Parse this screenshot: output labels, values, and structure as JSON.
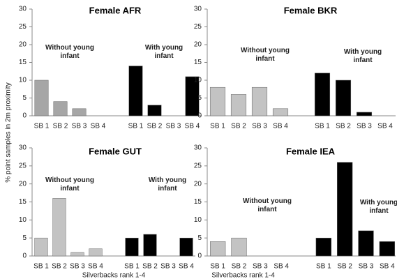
{
  "ylabel": "% point samples in 2m proximity",
  "chart_data": [
    {
      "type": "grouped-bar",
      "title": "Female AFR",
      "ylim": [
        0,
        30
      ],
      "yticks": [
        0,
        5,
        10,
        15,
        20,
        25,
        30
      ],
      "groups": [
        {
          "name": "Without young infant",
          "color": "#a6a6a6",
          "categories": [
            "SB 1",
            "SB 2",
            "SB 3",
            "SB 4"
          ],
          "values": [
            10,
            4,
            2,
            0
          ]
        },
        {
          "name": "With young infant",
          "color": "#000000",
          "categories": [
            "SB 1",
            "SB 2",
            "SB 3",
            "SB 4"
          ],
          "values": [
            14,
            3,
            0,
            11
          ]
        }
      ]
    },
    {
      "type": "grouped-bar",
      "title": "Female BKR",
      "ylim": [
        0,
        30
      ],
      "yticks": [
        0,
        5,
        10,
        15,
        20,
        25,
        30
      ],
      "groups": [
        {
          "name": "Without young infant",
          "color": "#c3c3c3",
          "categories": [
            "SB 1",
            "SB 2",
            "SB 3",
            "SB 4"
          ],
          "values": [
            8,
            6,
            8,
            2
          ]
        },
        {
          "name": "With young infant",
          "color": "#000000",
          "categories": [
            "SB 1",
            "SB 2",
            "SB 3",
            "SB 4"
          ],
          "values": [
            12,
            10,
            1,
            0
          ]
        }
      ]
    },
    {
      "type": "grouped-bar",
      "title": "Female GUT",
      "xlabel": "Silverbacks rank 1-4",
      "ylim": [
        0,
        30
      ],
      "yticks": [
        0,
        5,
        10,
        15,
        20,
        25,
        30
      ],
      "groups": [
        {
          "name": "Without young infant",
          "color": "#c3c3c3",
          "categories": [
            "SB 1",
            "SB 2",
            "SB 3",
            "SB 4"
          ],
          "values": [
            5,
            16,
            1,
            2
          ]
        },
        {
          "name": "With young infant",
          "color": "#000000",
          "categories": [
            "SB 1",
            "SB 2",
            "SB 3",
            "SB 4"
          ],
          "values": [
            5,
            6,
            0,
            5
          ]
        }
      ]
    },
    {
      "type": "grouped-bar",
      "title": "Female IEA",
      "xlabel": "Silverbacks rank 1-4",
      "ylim": [
        0,
        30
      ],
      "yticks": [
        0,
        5,
        10,
        15,
        20,
        25,
        30
      ],
      "groups": [
        {
          "name": "Without young infant",
          "color": "#c3c3c3",
          "categories": [
            "SB 1",
            "SB 2",
            "SB 3",
            "SB 4"
          ],
          "values": [
            4,
            5,
            0,
            0
          ]
        },
        {
          "name": "With young infant",
          "color": "#000000",
          "categories": [
            "SB 1",
            "SB 2",
            "SB 3",
            "SB 4"
          ],
          "values": [
            5,
            26,
            7,
            4
          ]
        }
      ]
    }
  ]
}
